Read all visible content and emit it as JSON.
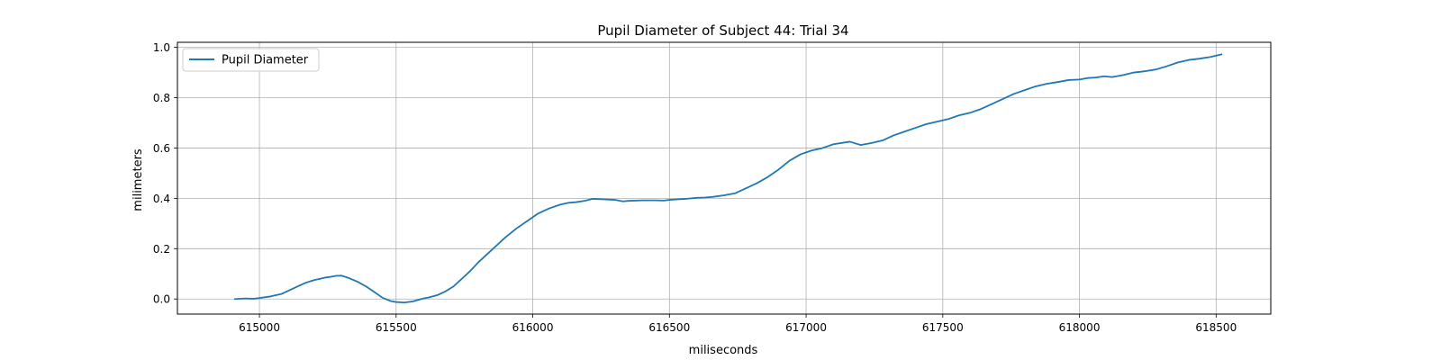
{
  "chart_data": {
    "type": "line",
    "title": "Pupil Diameter of Subject 44: Trial 34",
    "xlabel": "miliseconds",
    "ylabel": "milimeters",
    "xlim": [
      614700,
      618700
    ],
    "ylim": [
      -0.06,
      1.02
    ],
    "xticks": [
      615000,
      615500,
      616000,
      616500,
      617000,
      617500,
      618000,
      618500
    ],
    "yticks": [
      0.0,
      0.2,
      0.4,
      0.6,
      0.8,
      1.0
    ],
    "xtick_labels": [
      "615000",
      "615500",
      "616000",
      "616500",
      "617000",
      "617500",
      "618000",
      "618500"
    ],
    "ytick_labels": [
      "0.0",
      "0.2",
      "0.4",
      "0.6",
      "0.8",
      "1.0"
    ],
    "grid": true,
    "legend_position": "top-left",
    "color": "#1f77b4",
    "series": [
      {
        "name": "Pupil Diameter",
        "x": [
          614910,
          614950,
          614980,
          615000,
          615040,
          615080,
          615120,
          615140,
          615170,
          615200,
          615240,
          615260,
          615280,
          615300,
          615330,
          615360,
          615390,
          615420,
          615450,
          615480,
          615500,
          615530,
          615560,
          615600,
          615620,
          615650,
          615680,
          615710,
          615740,
          615770,
          615800,
          615830,
          615860,
          615900,
          615940,
          615980,
          616020,
          616060,
          616100,
          616130,
          616160,
          616190,
          616220,
          616260,
          616300,
          616330,
          616350,
          616400,
          616450,
          616480,
          616500,
          616530,
          616560,
          616600,
          616630,
          616660,
          616700,
          616740,
          616780,
          616820,
          616860,
          616900,
          616940,
          616980,
          617020,
          617060,
          617100,
          617160,
          617200,
          617240,
          617280,
          617320,
          617360,
          617400,
          617440,
          617480,
          617520,
          617560,
          617600,
          617640,
          617680,
          617720,
          617760,
          617800,
          617840,
          617880,
          617920,
          617960,
          618000,
          618030,
          618060,
          618090,
          618120,
          618160,
          618200,
          618240,
          618280,
          618320,
          618360,
          618400,
          618440,
          618480,
          618520
        ],
        "y": [
          0.0,
          0.002,
          0.001,
          0.004,
          0.01,
          0.02,
          0.04,
          0.05,
          0.065,
          0.075,
          0.085,
          0.088,
          0.092,
          0.093,
          0.082,
          0.068,
          0.05,
          0.028,
          0.005,
          -0.008,
          -0.012,
          -0.014,
          -0.01,
          0.002,
          0.006,
          0.015,
          0.03,
          0.05,
          0.08,
          0.11,
          0.145,
          0.175,
          0.205,
          0.245,
          0.28,
          0.31,
          0.34,
          0.36,
          0.375,
          0.382,
          0.385,
          0.39,
          0.398,
          0.396,
          0.394,
          0.388,
          0.39,
          0.392,
          0.392,
          0.391,
          0.394,
          0.396,
          0.398,
          0.402,
          0.403,
          0.406,
          0.412,
          0.42,
          0.44,
          0.46,
          0.485,
          0.515,
          0.55,
          0.575,
          0.59,
          0.6,
          0.615,
          0.625,
          0.612,
          0.62,
          0.63,
          0.65,
          0.665,
          0.68,
          0.695,
          0.705,
          0.715,
          0.73,
          0.74,
          0.755,
          0.775,
          0.795,
          0.815,
          0.83,
          0.845,
          0.855,
          0.862,
          0.87,
          0.872,
          0.878,
          0.88,
          0.885,
          0.882,
          0.89,
          0.9,
          0.905,
          0.912,
          0.925,
          0.94,
          0.95,
          0.955,
          0.962,
          0.972
        ]
      }
    ]
  }
}
